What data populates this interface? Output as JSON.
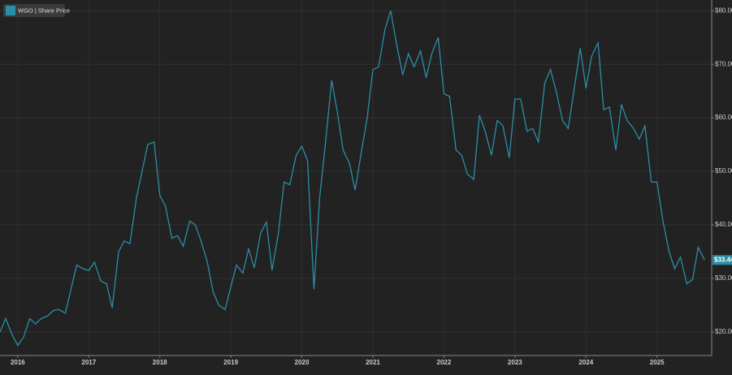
{
  "chart_data": {
    "type": "line",
    "series": [
      {
        "name": "WGO | Share Price",
        "color": "#2b8ea6",
        "values": [
          20,
          22.5,
          19.5,
          17.5,
          19,
          22.5,
          21.5,
          22.5,
          23,
          24,
          24.2,
          23.5,
          28,
          32.5,
          31.8,
          31.5,
          33,
          29.5,
          29,
          24.5,
          35,
          37,
          36.5,
          45,
          50,
          55,
          55.5,
          45.5,
          43.5,
          37.5,
          38,
          36,
          40.7,
          40,
          37,
          33,
          27.5,
          25,
          24.2,
          28.5,
          32.5,
          31,
          35.5,
          32,
          38.5,
          40.5,
          31.5,
          38.5,
          48,
          47.5,
          53,
          54.7,
          52,
          28,
          45,
          55,
          67,
          61,
          54,
          51.5,
          46.5,
          53,
          60,
          69,
          69.5,
          76.5,
          80,
          74,
          68,
          72,
          69.5,
          72.5,
          67.5,
          72,
          75,
          64.5,
          64,
          54,
          53,
          49.5,
          48.5,
          60.5,
          57.5,
          53,
          59.5,
          58.5,
          52.5,
          63.5,
          63.5,
          57.5,
          58,
          55.5,
          66.5,
          69,
          65,
          59.5,
          58,
          65,
          73,
          65.5,
          71.5,
          74,
          61.5,
          62,
          54,
          62.5,
          59.5,
          58,
          56,
          58.5,
          48,
          48,
          41,
          35,
          31.8,
          34,
          29,
          29.8,
          35.8,
          33.44
        ],
        "value_labels": [
          null,
          null,
          null,
          null,
          null,
          null,
          null,
          null,
          null,
          null,
          null,
          null,
          null,
          null,
          null,
          null,
          null,
          null,
          null,
          null,
          null,
          null,
          null,
          null,
          null,
          null,
          null,
          null,
          null,
          null,
          null,
          null,
          null,
          null,
          null,
          null,
          null,
          null,
          null,
          null,
          null,
          null,
          null,
          null,
          null,
          null,
          null,
          null,
          null,
          null,
          null,
          null,
          null,
          null,
          null,
          null,
          null,
          null,
          null,
          null,
          null,
          null,
          null,
          null,
          null,
          null,
          null,
          null,
          null,
          null,
          null,
          null,
          null,
          null,
          null,
          null,
          null,
          null,
          null,
          null,
          null,
          null,
          null,
          null,
          null,
          null,
          null,
          null,
          null,
          null,
          null,
          null,
          null,
          null,
          null,
          null,
          null,
          null,
          null,
          null,
          null,
          null,
          null,
          null,
          null,
          null,
          null,
          null,
          null,
          null,
          null,
          null,
          null,
          null,
          null,
          null,
          null,
          null,
          null,
          "$33.44"
        ]
      }
    ],
    "x": [
      2015.75,
      2015.83,
      2015.92,
      2016.0,
      2016.08,
      2016.17,
      2016.25,
      2016.33,
      2016.42,
      2016.5,
      2016.58,
      2016.67,
      2016.75,
      2016.83,
      2016.92,
      2017.0,
      2017.08,
      2017.17,
      2017.25,
      2017.33,
      2017.42,
      2017.5,
      2017.58,
      2017.67,
      2017.75,
      2017.83,
      2017.92,
      2018.0,
      2018.08,
      2018.17,
      2018.25,
      2018.33,
      2018.42,
      2018.5,
      2018.58,
      2018.67,
      2018.75,
      2018.83,
      2018.92,
      2019.0,
      2019.08,
      2019.17,
      2019.25,
      2019.33,
      2019.42,
      2019.5,
      2019.58,
      2019.67,
      2019.75,
      2019.83,
      2019.92,
      2020.0,
      2020.08,
      2020.17,
      2020.25,
      2020.33,
      2020.42,
      2020.5,
      2020.58,
      2020.67,
      2020.75,
      2020.83,
      2020.92,
      2021.0,
      2021.08,
      2021.17,
      2021.25,
      2021.33,
      2021.42,
      2021.5,
      2021.58,
      2021.67,
      2021.75,
      2021.83,
      2021.92,
      2022.0,
      2022.08,
      2022.17,
      2022.25,
      2022.33,
      2022.42,
      2022.5,
      2022.58,
      2022.67,
      2022.75,
      2022.83,
      2022.92,
      2023.0,
      2023.08,
      2023.17,
      2023.25,
      2023.33,
      2023.42,
      2023.5,
      2023.58,
      2023.67,
      2023.75,
      2023.83,
      2023.92,
      2024.0,
      2024.08,
      2024.17,
      2024.25,
      2024.33,
      2024.42,
      2024.5,
      2024.58,
      2024.67,
      2024.75,
      2024.83,
      2024.92,
      2025.0,
      2025.08,
      2025.17,
      2025.25,
      2025.33,
      2025.42,
      2025.5,
      2025.58,
      2025.67
    ],
    "xlim": [
      2015.75,
      2025.77
    ],
    "xticks": [
      2016,
      2017,
      2018,
      2019,
      2020,
      2021,
      2022,
      2023,
      2024,
      2025
    ],
    "ylim": [
      15.6,
      82
    ],
    "yticks": [
      {
        "value": 20,
        "label": "$20.00"
      },
      {
        "value": 30,
        "label": "$30.00"
      },
      {
        "value": 40,
        "label": "$40.00"
      },
      {
        "value": 50,
        "label": "$50.00"
      },
      {
        "value": 60,
        "label": "$60.00"
      },
      {
        "value": 70,
        "label": "$70.00"
      },
      {
        "value": 80,
        "label": "$80.00"
      }
    ],
    "grid": true
  }
}
